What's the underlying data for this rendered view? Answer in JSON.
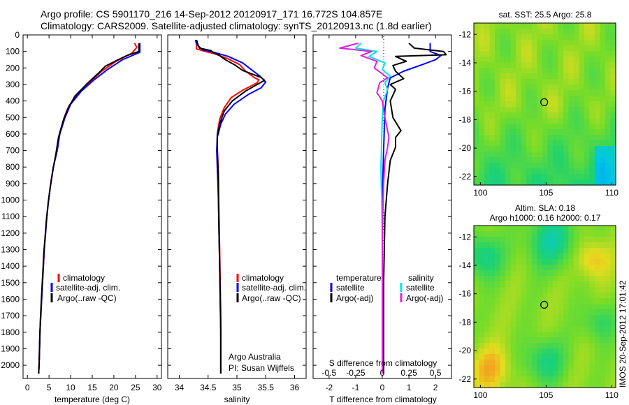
{
  "header": {
    "line1": "Argo profile: CS 5901170_216 14-Sep-2012 20120917_171 16.772S 104.857E",
    "line2": "Climatology: CARS2009. Satellite-adjusted climatology: synTS_20120913.nc (1.8d earlier)"
  },
  "footer": {
    "credit_lines": [
      "Argo Australia",
      "PI: Susan Wijffels"
    ],
    "timestamp": "IMOS 20-Sep-2012 17:01:42"
  },
  "colors": {
    "climatology": "#ff0000",
    "satellite": "#0000ff",
    "argo": "#000000",
    "sal_satellite": "#00e5e5",
    "sal_argo": "#e020e0"
  },
  "chart_data": [
    {
      "type": "line",
      "id": "temperature",
      "xlabel": "temperature (deg C)",
      "ylabel": "",
      "xlim": [
        -1,
        31
      ],
      "ylim": [
        2080,
        0
      ],
      "xticks": [
        0,
        5,
        10,
        15,
        20,
        25,
        30
      ],
      "yticks": [
        0,
        100,
        200,
        300,
        400,
        500,
        600,
        700,
        800,
        900,
        1000,
        1100,
        1200,
        1300,
        1400,
        1500,
        1600,
        1700,
        1800,
        1900,
        2000
      ],
      "legend": [
        "climatology",
        "satellite-adj. clim.",
        "Argo(..raw -QC)"
      ],
      "legend_position": "lower-right",
      "series": [
        {
          "name": "climatology",
          "color": "#ff0000",
          "points": [
            [
              24.8,
              50
            ],
            [
              25.3,
              75
            ],
            [
              24.2,
              110
            ],
            [
              20.5,
              160
            ],
            [
              17.2,
              220
            ],
            [
              14.2,
              290
            ],
            [
              11.5,
              360
            ],
            [
              9.6,
              430
            ],
            [
              8.5,
              500
            ],
            [
              7.4,
              600
            ],
            [
              6.8,
              700
            ],
            [
              6.0,
              800
            ],
            [
              5.4,
              900
            ],
            [
              4.9,
              1000
            ],
            [
              4.5,
              1100
            ],
            [
              4.2,
              1200
            ],
            [
              3.9,
              1300
            ],
            [
              3.7,
              1400
            ],
            [
              3.5,
              1500
            ],
            [
              3.3,
              1600
            ],
            [
              3.1,
              1700
            ],
            [
              2.9,
              1800
            ],
            [
              2.8,
              1900
            ],
            [
              2.7,
              2000
            ],
            [
              2.6,
              2050
            ]
          ]
        },
        {
          "name": "satellite-adj. clim.",
          "color": "#0000ff",
          "points": [
            [
              26.0,
              50
            ],
            [
              26.0,
              105
            ],
            [
              22.0,
              150
            ],
            [
              18.5,
              210
            ],
            [
              15.5,
              270
            ],
            [
              12.5,
              340
            ],
            [
              10.0,
              420
            ],
            [
              8.7,
              500
            ],
            [
              7.5,
              600
            ],
            [
              6.9,
              700
            ],
            [
              6.0,
              800
            ],
            [
              5.4,
              900
            ],
            [
              4.9,
              1000
            ],
            [
              4.5,
              1100
            ],
            [
              4.2,
              1200
            ],
            [
              3.9,
              1300
            ],
            [
              3.7,
              1400
            ],
            [
              3.5,
              1500
            ],
            [
              3.3,
              1600
            ],
            [
              3.1,
              1700
            ],
            [
              2.9,
              1800
            ],
            [
              2.8,
              1900
            ],
            [
              2.7,
              2000
            ],
            [
              2.6,
              2050
            ]
          ]
        },
        {
          "name": "Argo(..raw -QC)",
          "color": "#000000",
          "points": [
            [
              25.8,
              50
            ],
            [
              25.8,
              100
            ],
            [
              23.0,
              125
            ],
            [
              21.0,
              150
            ],
            [
              18.0,
              190
            ],
            [
              16.5,
              230
            ],
            [
              14.0,
              290
            ],
            [
              11.0,
              370
            ],
            [
              9.3,
              450
            ],
            [
              8.3,
              520
            ],
            [
              7.2,
              620
            ],
            [
              6.6,
              720
            ],
            [
              5.9,
              820
            ],
            [
              5.3,
              920
            ],
            [
              4.8,
              1020
            ],
            [
              4.4,
              1120
            ],
            [
              4.1,
              1220
            ],
            [
              3.8,
              1320
            ],
            [
              3.6,
              1420
            ],
            [
              3.4,
              1520
            ],
            [
              3.2,
              1620
            ],
            [
              3.0,
              1720
            ],
            [
              2.9,
              1820
            ],
            [
              2.8,
              1920
            ],
            [
              2.7,
              2000
            ],
            [
              2.6,
              2050
            ]
          ]
        }
      ]
    },
    {
      "type": "line",
      "id": "salinity",
      "xlabel": "salinity",
      "xlim": [
        33.8,
        36.2
      ],
      "ylim": [
        2080,
        0
      ],
      "xticks": [
        34,
        34.5,
        35,
        35.5,
        36
      ],
      "legend": [
        "climatology",
        "satellite-adj. clim.",
        "Argo(..raw -QC)"
      ],
      "legend_position": "lower-right",
      "series": [
        {
          "name": "climatology",
          "color": "#ff0000",
          "points": [
            [
              34.3,
              30
            ],
            [
              34.3,
              85
            ],
            [
              34.45,
              100
            ],
            [
              34.62,
              115
            ],
            [
              34.85,
              145
            ],
            [
              35.05,
              180
            ],
            [
              35.15,
              220
            ],
            [
              35.3,
              258
            ],
            [
              35.38,
              272
            ],
            [
              35.35,
              290
            ],
            [
              35.1,
              335
            ],
            [
              34.9,
              380
            ],
            [
              34.78,
              440
            ],
            [
              34.7,
              510
            ],
            [
              34.66,
              600
            ],
            [
              34.66,
              680
            ],
            [
              34.67,
              760
            ],
            [
              34.68,
              850
            ],
            [
              34.68,
              950
            ],
            [
              34.69,
              1100
            ],
            [
              34.7,
              1300
            ],
            [
              34.71,
              1500
            ],
            [
              34.72,
              1700
            ],
            [
              34.72,
              1900
            ],
            [
              34.72,
              2050
            ]
          ]
        },
        {
          "name": "satellite-adj. clim.",
          "color": "#0000ff",
          "points": [
            [
              34.28,
              30
            ],
            [
              34.3,
              55
            ],
            [
              34.4,
              90
            ],
            [
              34.6,
              105
            ],
            [
              34.85,
              130
            ],
            [
              35.1,
              170
            ],
            [
              35.25,
              210
            ],
            [
              35.4,
              250
            ],
            [
              35.5,
              285
            ],
            [
              35.42,
              320
            ],
            [
              35.2,
              360
            ],
            [
              34.95,
              420
            ],
            [
              34.8,
              480
            ],
            [
              34.72,
              540
            ],
            [
              34.66,
              620
            ],
            [
              34.65,
              700
            ],
            [
              34.66,
              800
            ],
            [
              34.67,
              900
            ],
            [
              34.68,
              1000
            ],
            [
              34.69,
              1200
            ],
            [
              34.7,
              1400
            ],
            [
              34.71,
              1600
            ],
            [
              34.72,
              1800
            ],
            [
              34.72,
              2050
            ]
          ]
        },
        {
          "name": "Argo(..raw -QC)",
          "color": "#000000",
          "points": [
            [
              34.3,
              30
            ],
            [
              34.32,
              55
            ],
            [
              34.35,
              80
            ],
            [
              34.55,
              95
            ],
            [
              34.6,
              110
            ],
            [
              34.68,
              120
            ],
            [
              34.8,
              150
            ],
            [
              34.98,
              185
            ],
            [
              35.1,
              215
            ],
            [
              35.25,
              235
            ],
            [
              35.42,
              258
            ],
            [
              35.48,
              275
            ],
            [
              35.35,
              300
            ],
            [
              35.15,
              340
            ],
            [
              34.92,
              400
            ],
            [
              34.78,
              460
            ],
            [
              34.7,
              540
            ],
            [
              34.66,
              610
            ],
            [
              34.66,
              700
            ],
            [
              34.67,
              800
            ],
            [
              34.68,
              900
            ],
            [
              34.68,
              1000
            ],
            [
              34.69,
              1200
            ],
            [
              34.7,
              1400
            ],
            [
              34.71,
              1600
            ],
            [
              34.72,
              1800
            ],
            [
              34.72,
              2050
            ]
          ]
        }
      ]
    },
    {
      "type": "line",
      "id": "difference",
      "xlabel_top": "S difference from climatology",
      "xlabel": "T difference from climatology",
      "xlim": [
        -2.6,
        2.6
      ],
      "ylim": [
        2080,
        0
      ],
      "xticks": [
        -2,
        -1,
        0,
        1,
        2
      ],
      "xticks_top_labels": [
        "-0.5",
        "-0.25",
        "0",
        "0.25",
        "0.5"
      ],
      "xticks_top_positions": [
        -2,
        -1,
        0,
        1,
        2
      ],
      "legend_temperature_title": "temperature",
      "legend_salinity_title": "salinity",
      "legend_temperature": [
        "satellite",
        "Argo(-adj)"
      ],
      "legend_salinity": [
        "satellite",
        "Argo(-adj)"
      ],
      "series": [
        {
          "name": "T satellite",
          "color": "#0000ff",
          "points": [
            [
              1.8,
              50
            ],
            [
              1.8,
              100
            ],
            [
              2.2,
              125
            ],
            [
              2.0,
              150
            ],
            [
              1.5,
              180
            ],
            [
              0.8,
              220
            ],
            [
              0.3,
              260
            ],
            [
              0.2,
              320
            ],
            [
              0.1,
              450
            ],
            [
              0.05,
              700
            ],
            [
              0.0,
              1000
            ],
            [
              0.0,
              1500
            ],
            [
              0.0,
              2050
            ]
          ]
        },
        {
          "name": "T Argo(-adj)",
          "color": "#000000",
          "points": [
            [
              1.0,
              50
            ],
            [
              1.2,
              80
            ],
            [
              2.3,
              100
            ],
            [
              2.4,
              120
            ],
            [
              0.5,
              130
            ],
            [
              0.9,
              160
            ],
            [
              0.4,
              185
            ],
            [
              0.5,
              220
            ],
            [
              0.8,
              265
            ],
            [
              0.3,
              300
            ],
            [
              0.5,
              330
            ],
            [
              0.3,
              400
            ],
            [
              0.4,
              500
            ],
            [
              0.7,
              580
            ],
            [
              0.5,
              620
            ],
            [
              0.5,
              680
            ],
            [
              0.3,
              760
            ],
            [
              0.2,
              900
            ],
            [
              0.1,
              1100
            ],
            [
              0.05,
              1500
            ],
            [
              0.05,
              2000
            ],
            [
              0.05,
              2050
            ]
          ]
        },
        {
          "name": "S satellite",
          "color": "#00e5e5",
          "points": [
            [
              -0.8,
              50
            ],
            [
              -1.0,
              80
            ],
            [
              -0.2,
              100
            ],
            [
              -0.5,
              130
            ],
            [
              0.1,
              170
            ],
            [
              0.0,
              210
            ],
            [
              0.3,
              250
            ],
            [
              0.1,
              290
            ],
            [
              0.2,
              330
            ],
            [
              0.05,
              400
            ],
            [
              0.0,
              500
            ],
            [
              -0.05,
              800
            ],
            [
              0.0,
              1200
            ],
            [
              0.0,
              2050
            ]
          ]
        },
        {
          "name": "S Argo(-adj)",
          "color": "#e020e0",
          "points": [
            [
              -0.9,
              50
            ],
            [
              -1.6,
              80
            ],
            [
              -0.4,
              100
            ],
            [
              -0.8,
              125
            ],
            [
              -0.2,
              160
            ],
            [
              -0.3,
              200
            ],
            [
              0.2,
              260
            ],
            [
              -0.1,
              290
            ],
            [
              -0.2,
              350
            ],
            [
              0.0,
              400
            ],
            [
              0.1,
              500
            ],
            [
              0.25,
              620
            ],
            [
              0.2,
              680
            ],
            [
              0.1,
              760
            ],
            [
              0.05,
              900
            ],
            [
              0.0,
              1200
            ],
            [
              0.0,
              2050
            ]
          ]
        }
      ]
    },
    {
      "type": "heatmap",
      "id": "sst-map",
      "title": "sat. SST: 25.5 Argo: 25.8",
      "xlim": [
        99.5,
        110.3
      ],
      "ylim": [
        -22.6,
        -11.2
      ],
      "xticks": [
        100,
        105,
        110
      ],
      "yticks": [
        -12,
        -14,
        -16,
        -18,
        -20,
        -22
      ],
      "marker": {
        "lon": 104.857,
        "lat": -16.772
      }
    },
    {
      "type": "heatmap",
      "id": "sla-map",
      "title_lines": [
        "Altim. SLA: 0.18",
        "Argo h1000: 0.16 h2000: 0.17"
      ],
      "xlim": [
        99.5,
        110.3
      ],
      "ylim": [
        -22.6,
        -11.2
      ],
      "xticks": [
        100,
        105,
        110
      ],
      "yticks": [
        -12,
        -14,
        -16,
        -18,
        -20,
        -22
      ],
      "marker": {
        "lon": 104.857,
        "lat": -16.772
      }
    }
  ]
}
